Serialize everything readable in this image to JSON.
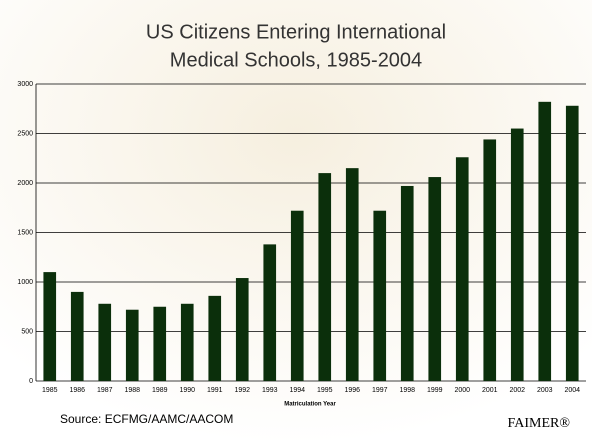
{
  "chart_data": {
    "type": "bar",
    "title": [
      "US Citizens Entering International",
      "Medical Schools, 1985-2004"
    ],
    "x_label": "Matriculation Year",
    "source": "Source: ECFMG/AAMC/AACOM",
    "brand": "FAIMER®",
    "categories": [
      "1985",
      "1986",
      "1987",
      "1988",
      "1989",
      "1990",
      "1991",
      "1992",
      "1993",
      "1994",
      "1995",
      "1996",
      "1997",
      "1998",
      "1999",
      "2000",
      "2001",
      "2002",
      "2003",
      "2004"
    ],
    "values": [
      1100,
      900,
      780,
      720,
      750,
      780,
      860,
      1040,
      1380,
      1720,
      2100,
      2150,
      1720,
      1970,
      2060,
      2260,
      2440,
      2550,
      2820,
      2780
    ],
    "color": "#0b2f0b",
    "ylim": [
      0,
      3000
    ],
    "yticks": [
      0,
      500,
      1000,
      1500,
      2000,
      2500,
      3000
    ],
    "grid": true
  }
}
